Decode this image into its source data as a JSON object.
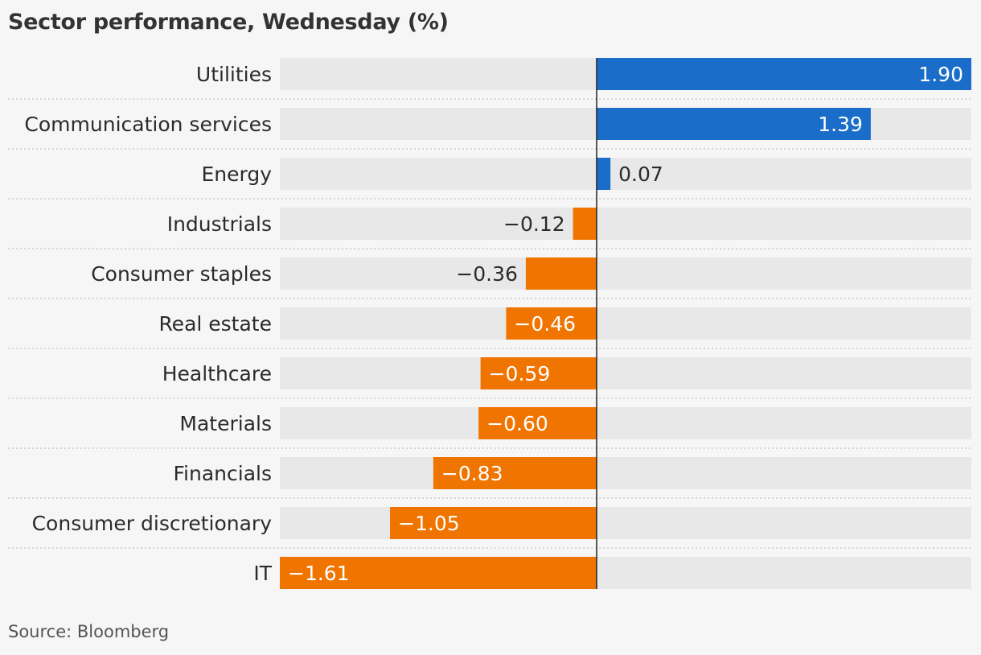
{
  "title": "Sector performance, Wednesday (%)",
  "source": "Source: Bloomberg",
  "colors": {
    "positive": "#1a6ec9",
    "negative": "#f07400",
    "track": "#e8e8e8",
    "background": "#f6f6f6"
  },
  "chart_data": {
    "type": "bar",
    "orientation": "horizontal",
    "title": "Sector performance, Wednesday (%)",
    "categories": [
      "Utilities",
      "Communication services",
      "Energy",
      "Industrials",
      "Consumer staples",
      "Real estate",
      "Healthcare",
      "Materials",
      "Financials",
      "Consumer discretionary",
      "IT"
    ],
    "values": [
      1.9,
      1.39,
      0.07,
      -0.12,
      -0.36,
      -0.46,
      -0.59,
      -0.6,
      -0.83,
      -1.05,
      -1.61
    ],
    "labels": [
      "1.90",
      "1.39",
      "0.07",
      "−0.12",
      "−0.36",
      "−0.46",
      "−0.59",
      "−0.60",
      "−0.83",
      "−1.05",
      "−1.61"
    ],
    "xlim": [
      -1.61,
      1.9
    ],
    "grid": false,
    "legend": "none"
  }
}
